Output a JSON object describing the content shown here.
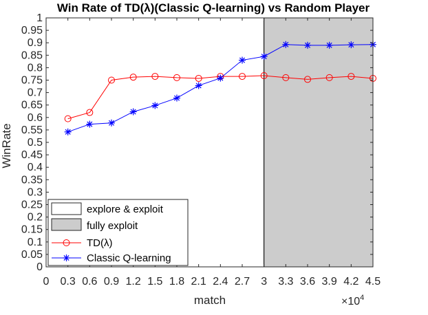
{
  "chart_data": {
    "type": "line",
    "title": "Win Rate of TD(λ)(Classic Q-learning) vs Random Player",
    "xlabel": "match",
    "ylabel": "WinRate",
    "x_multiplier": "×10^4",
    "xlim": [
      0,
      4.5
    ],
    "ylim": [
      0,
      1
    ],
    "x_ticks": [
      "0",
      "0.3",
      "0.6",
      "0.9",
      "1.2",
      "1.5",
      "1.8",
      "2.1",
      "2.4",
      "2.7",
      "3",
      "3.3",
      "3.6",
      "3.9",
      "4.2",
      "4.5"
    ],
    "y_ticks": [
      "0",
      "0.05",
      "0.1",
      "0.15",
      "0.2",
      "0.25",
      "0.3",
      "0.35",
      "0.4",
      "0.45",
      "0.5",
      "0.55",
      "0.6",
      "0.65",
      "0.7",
      "0.75",
      "0.8",
      "0.85",
      "0.9",
      "0.95",
      "1"
    ],
    "regions": [
      {
        "name": "explore & exploit",
        "x_range": [
          0,
          3
        ],
        "color": "#ffffff"
      },
      {
        "name": "fully exploit",
        "x_range": [
          3,
          4.5
        ],
        "color": "#cccccc"
      }
    ],
    "series": [
      {
        "name": "TD(λ)",
        "color": "#ff0000",
        "marker": "circle",
        "x": [
          0.3,
          0.6,
          0.9,
          1.2,
          1.5,
          1.8,
          2.1,
          2.4,
          2.7,
          3.0,
          3.3,
          3.6,
          3.9,
          4.2,
          4.5
        ],
        "values": [
          0.595,
          0.62,
          0.75,
          0.762,
          0.765,
          0.76,
          0.757,
          0.765,
          0.765,
          0.768,
          0.76,
          0.753,
          0.76,
          0.765,
          0.757
        ]
      },
      {
        "name": "Classic Q-learning",
        "color": "#0000ff",
        "marker": "star",
        "x": [
          0.3,
          0.6,
          0.9,
          1.2,
          1.5,
          1.8,
          2.1,
          2.4,
          2.7,
          3.0,
          3.3,
          3.6,
          3.9,
          4.2,
          4.5
        ],
        "values": [
          0.542,
          0.573,
          0.578,
          0.623,
          0.648,
          0.678,
          0.728,
          0.758,
          0.83,
          0.845,
          0.893,
          0.89,
          0.89,
          0.892,
          0.893
        ]
      }
    ],
    "grid": false,
    "legend_position": "bottom-left"
  }
}
